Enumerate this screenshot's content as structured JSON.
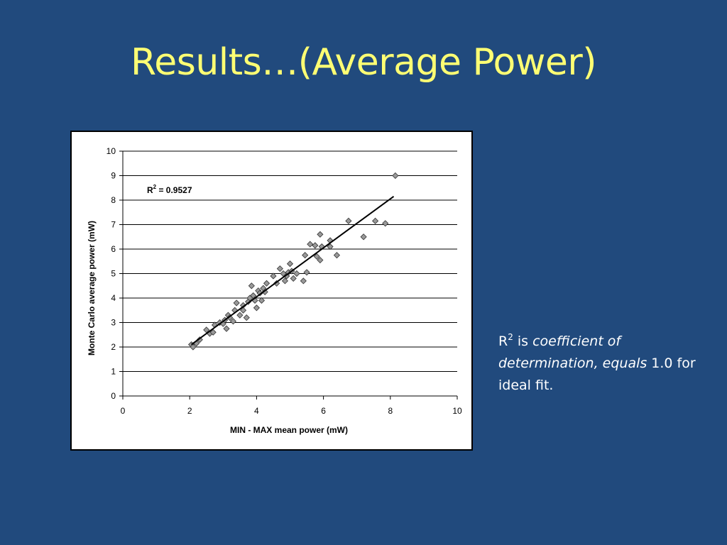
{
  "slide": {
    "title": "Results…(Average Power)"
  },
  "note": {
    "r": "R",
    "sup": "2",
    "is": " is ",
    "italic1": "coefficient of determination, equals",
    "tail": " 1.0 for ideal fit."
  },
  "colors": {
    "background": "#214a7d",
    "title": "#ffff73",
    "marker": "#999999"
  },
  "chart_data": {
    "type": "scatter",
    "xlabel": "MIN - MAX mean power (mW)",
    "ylabel": "Monte Carlo average power (mW)",
    "xlim": [
      0,
      10
    ],
    "ylim": [
      0,
      10
    ],
    "xticks": [
      0,
      2,
      4,
      6,
      8,
      10
    ],
    "yticks": [
      0,
      1,
      2,
      3,
      4,
      5,
      6,
      7,
      8,
      9,
      10
    ],
    "grid": "horizontal",
    "annotation": {
      "r": "R",
      "sup": "2",
      "rest": " = 0.9527"
    },
    "trendline": {
      "x": [
        2.05,
        8.1
      ],
      "y": [
        2.1,
        8.15
      ]
    },
    "series": [
      {
        "marker": "diamond",
        "points": [
          [
            2.05,
            2.1
          ],
          [
            2.1,
            2.0
          ],
          [
            2.2,
            2.15
          ],
          [
            2.3,
            2.3
          ],
          [
            2.5,
            2.7
          ],
          [
            2.6,
            2.55
          ],
          [
            2.7,
            2.6
          ],
          [
            2.75,
            2.9
          ],
          [
            2.9,
            3.0
          ],
          [
            3.0,
            2.95
          ],
          [
            3.05,
            3.1
          ],
          [
            3.1,
            2.75
          ],
          [
            3.15,
            3.3
          ],
          [
            3.2,
            3.2
          ],
          [
            3.3,
            3.05
          ],
          [
            3.35,
            3.5
          ],
          [
            3.4,
            3.8
          ],
          [
            3.5,
            3.3
          ],
          [
            3.6,
            3.7
          ],
          [
            3.6,
            3.5
          ],
          [
            3.7,
            3.2
          ],
          [
            3.75,
            3.85
          ],
          [
            3.8,
            4.0
          ],
          [
            3.85,
            4.5
          ],
          [
            3.9,
            4.1
          ],
          [
            3.95,
            3.9
          ],
          [
            4.0,
            3.6
          ],
          [
            4.05,
            4.3
          ],
          [
            4.1,
            4.2
          ],
          [
            4.15,
            3.9
          ],
          [
            4.2,
            4.4
          ],
          [
            4.25,
            4.25
          ],
          [
            4.3,
            4.6
          ],
          [
            4.5,
            4.9
          ],
          [
            4.6,
            4.6
          ],
          [
            4.7,
            5.2
          ],
          [
            4.8,
            5.0
          ],
          [
            4.85,
            4.7
          ],
          [
            4.9,
            4.9
          ],
          [
            4.95,
            5.05
          ],
          [
            5.0,
            5.4
          ],
          [
            5.05,
            5.1
          ],
          [
            5.1,
            4.8
          ],
          [
            5.2,
            5.0
          ],
          [
            5.4,
            4.7
          ],
          [
            5.45,
            5.75
          ],
          [
            5.5,
            5.05
          ],
          [
            5.6,
            6.2
          ],
          [
            5.75,
            6.15
          ],
          [
            5.8,
            5.7
          ],
          [
            5.9,
            6.6
          ],
          [
            5.95,
            6.1
          ],
          [
            5.9,
            5.55
          ],
          [
            6.2,
            6.1
          ],
          [
            6.2,
            6.35
          ],
          [
            6.4,
            5.75
          ],
          [
            6.75,
            7.15
          ],
          [
            7.2,
            6.5
          ],
          [
            7.55,
            7.15
          ],
          [
            7.85,
            7.05
          ],
          [
            8.15,
            9.0
          ]
        ]
      }
    ]
  }
}
